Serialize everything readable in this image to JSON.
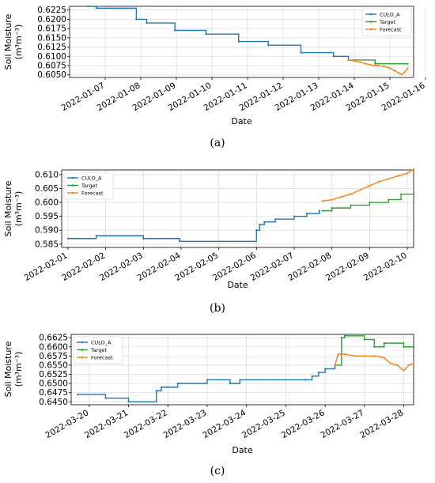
{
  "chart_data": [
    {
      "type": "line",
      "panel_label": "(a)",
      "xlabel": "Date",
      "ylabel": "Soil Moisture",
      "ylabel_units": "(m³m⁻³)",
      "ylim": [
        0.6043,
        0.6235
      ],
      "xlim": [
        "2022-01-06T00:00",
        "2022-01-15T16:00"
      ],
      "x_ticks": [
        "2022-01-07",
        "2022-01-08",
        "2022-01-09",
        "2022-01-10",
        "2022-01-11",
        "2022-01-12",
        "2022-01-13",
        "2022-01-14",
        "2022-01-15",
        "2022-01-16"
      ],
      "y_ticks": [
        "0.6225",
        "0.6200",
        "0.6175",
        "0.6150",
        "0.6125",
        "0.6100",
        "0.6075",
        "0.6050"
      ],
      "grid": true,
      "legend_position": "top-right",
      "series": [
        {
          "name": "CULO_A",
          "color": "#1f77b4",
          "step": true,
          "x": [
            "2022-01-06T12:00",
            "2022-01-06T18:00",
            "2022-01-07T21:00",
            "2022-01-08T04:00",
            "2022-01-08T23:00",
            "2022-01-09T20:00",
            "2022-01-10T18:00",
            "2022-01-11T14:00",
            "2022-01-12T12:00",
            "2022-01-13T10:00",
            "2022-01-13T20:00"
          ],
          "y": [
            0.6235,
            0.623,
            0.62,
            0.619,
            0.617,
            0.616,
            0.614,
            0.613,
            0.611,
            0.61,
            0.609
          ]
        },
        {
          "name": "Target",
          "color": "#2ca02c",
          "step": true,
          "x": [
            "2022-01-13T20:00",
            "2022-01-14T14:00",
            "2022-01-15T12:00"
          ],
          "y": [
            0.609,
            0.608,
            0.608
          ]
        },
        {
          "name": "Forecast",
          "color": "#ff7f0e",
          "step": false,
          "x": [
            "2022-01-13T20:00",
            "2022-01-14T00:00",
            "2022-01-14T04:00",
            "2022-01-14T08:00",
            "2022-01-14T12:00",
            "2022-01-14T16:00",
            "2022-01-14T20:00",
            "2022-01-15T00:00",
            "2022-01-15T03:00",
            "2022-01-15T06:00",
            "2022-01-15T08:00",
            "2022-01-15T10:00",
            "2022-01-15T12:00"
          ],
          "y": [
            0.609,
            0.6088,
            0.6084,
            0.608,
            0.6076,
            0.6075,
            0.6073,
            0.6068,
            0.6062,
            0.6055,
            0.6051,
            0.6058,
            0.6068
          ]
        }
      ]
    },
    {
      "type": "line",
      "panel_label": "(b)",
      "xlabel": "Date",
      "ylabel": "Soil Moisture",
      "ylabel_units": "(m³m⁻³)",
      "ylim": [
        0.5838,
        0.6117
      ],
      "xlim": [
        "2022-01-31T20:00",
        "2022-02-10T04:00"
      ],
      "x_ticks": [
        "2022-02-01",
        "2022-02-02",
        "2022-02-03",
        "2022-02-04",
        "2022-02-05",
        "2022-02-06",
        "2022-02-07",
        "2022-02-08",
        "2022-02-09",
        "2022-02-10"
      ],
      "y_ticks": [
        "0.610",
        "0.605",
        "0.600",
        "0.595",
        "0.590",
        "0.585"
      ],
      "grid": true,
      "legend_position": "top-left",
      "series": [
        {
          "name": "CULO_A",
          "color": "#1f77b4",
          "step": true,
          "x": [
            "2022-02-01T00:00",
            "2022-02-01T18:00",
            "2022-02-03T00:00",
            "2022-02-03T23:00",
            "2022-02-06T00:00",
            "2022-02-06T02:00",
            "2022-02-06T05:00",
            "2022-02-06T12:00",
            "2022-02-07T00:00",
            "2022-02-07T08:00",
            "2022-02-07T16:00"
          ],
          "y": [
            0.587,
            0.588,
            0.587,
            0.586,
            0.59,
            0.592,
            0.593,
            0.594,
            0.595,
            0.596,
            0.597
          ]
        },
        {
          "name": "Target",
          "color": "#2ca02c",
          "step": true,
          "x": [
            "2022-02-07T18:00",
            "2022-02-08T00:00",
            "2022-02-08T12:00",
            "2022-02-09T00:00",
            "2022-02-09T12:00",
            "2022-02-09T20:00",
            "2022-02-10T04:00"
          ],
          "y": [
            0.597,
            0.598,
            0.599,
            0.6,
            0.601,
            0.603,
            0.603
          ]
        },
        {
          "name": "Forecast",
          "color": "#ff7f0e",
          "step": false,
          "x": [
            "2022-02-07T18:00",
            "2022-02-08T00:00",
            "2022-02-08T06:00",
            "2022-02-08T12:00",
            "2022-02-08T18:00",
            "2022-02-09T00:00",
            "2022-02-09T06:00",
            "2022-02-09T12:00",
            "2022-02-09T18:00",
            "2022-02-10T00:00",
            "2022-02-10T04:00"
          ],
          "y": [
            0.6005,
            0.601,
            0.602,
            0.603,
            0.6045,
            0.606,
            0.6075,
            0.6085,
            0.6095,
            0.6105,
            0.612
          ]
        }
      ]
    },
    {
      "type": "line",
      "panel_label": "(c)",
      "xlabel": "Date",
      "ylabel": "Soil Moisture",
      "ylabel_units": "(m³m⁻³)",
      "ylim": [
        0.6442,
        0.6634
      ],
      "xlim": [
        "2022-03-19T13:00",
        "2022-03-28T06:00"
      ],
      "x_ticks": [
        "2022-03-20",
        "2022-03-21",
        "2022-03-22",
        "2022-03-23",
        "2022-03-24",
        "2022-03-25",
        "2022-03-26",
        "2022-03-27",
        "2022-03-28"
      ],
      "y_ticks": [
        "0.6625",
        "0.6600",
        "0.6575",
        "0.6550",
        "0.6525",
        "0.6500",
        "0.6475",
        "0.6450"
      ],
      "grid": true,
      "legend_position": "top-left",
      "series": [
        {
          "name": "CULO_A",
          "color": "#1f77b4",
          "step": true,
          "x": [
            "2022-03-19T17:00",
            "2022-03-20T10:00",
            "2022-03-21T00:00",
            "2022-03-21T17:00",
            "2022-03-21T20:00",
            "2022-03-22T00:00",
            "2022-03-22T06:00",
            "2022-03-23T00:00",
            "2022-03-23T14:00",
            "2022-03-23T20:00",
            "2022-03-25T12:00",
            "2022-03-25T16:00",
            "2022-03-25T20:00",
            "2022-03-26T00:00",
            "2022-03-26T06:00"
          ],
          "y": [
            0.647,
            0.646,
            0.645,
            0.648,
            0.649,
            0.649,
            0.65,
            0.651,
            0.65,
            0.651,
            0.651,
            0.652,
            0.653,
            0.654,
            0.655
          ]
        },
        {
          "name": "Target",
          "color": "#2ca02c",
          "step": true,
          "x": [
            "2022-03-26T06:00",
            "2022-03-26T10:00",
            "2022-03-26T12:00",
            "2022-03-27T00:00",
            "2022-03-27T06:00",
            "2022-03-27T12:00",
            "2022-03-28T00:00",
            "2022-03-28T06:00"
          ],
          "y": [
            0.655,
            0.6625,
            0.663,
            0.662,
            0.66,
            0.661,
            0.66,
            0.66
          ]
        },
        {
          "name": "Forecast",
          "color": "#ff7f0e",
          "step": false,
          "x": [
            "2022-03-26T06:00",
            "2022-03-26T08:00",
            "2022-03-26T12:00",
            "2022-03-26T18:00",
            "2022-03-27T00:00",
            "2022-03-27T06:00",
            "2022-03-27T12:00",
            "2022-03-27T16:00",
            "2022-03-27T20:00",
            "2022-03-28T00:00",
            "2022-03-28T03:00",
            "2022-03-28T06:00"
          ],
          "y": [
            0.655,
            0.658,
            0.658,
            0.6575,
            0.6575,
            0.6575,
            0.657,
            0.6555,
            0.655,
            0.6535,
            0.655,
            0.6555
          ]
        }
      ]
    }
  ]
}
